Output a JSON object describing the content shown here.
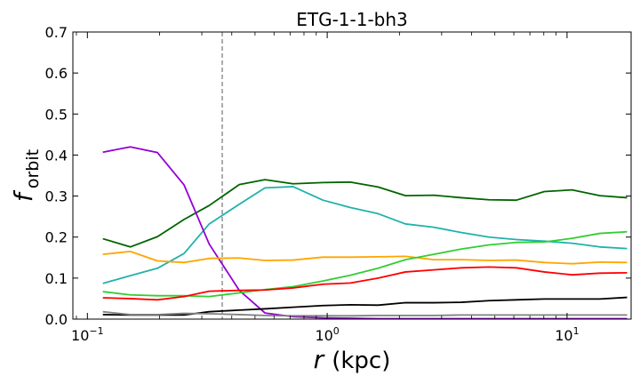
{
  "chart_data": {
    "type": "line",
    "title": "ETG-1-1-bh3",
    "xlabel": {
      "var": "r",
      "unit": "(kpc)"
    },
    "ylabel": {
      "var": "f",
      "sub": "orbit"
    },
    "xscale": "log",
    "xlim": [
      0.087,
      18.5
    ],
    "ylim": [
      0,
      0.7
    ],
    "xticks": [
      {
        "value": 0.1,
        "base": "10",
        "exp": "−1"
      },
      {
        "value": 1,
        "base": "10",
        "exp": "0"
      },
      {
        "value": 10,
        "base": "10",
        "exp": "1"
      }
    ],
    "yticks": [
      0.0,
      0.1,
      0.2,
      0.3,
      0.4,
      0.5,
      0.6,
      0.7
    ],
    "ytick_labels": [
      "0.0",
      "0.1",
      "0.2",
      "0.3",
      "0.4",
      "0.5",
      "0.6",
      "0.7"
    ],
    "vline": {
      "x": 0.365,
      "color": "#808080"
    },
    "x": [
      0.116,
      0.151,
      0.196,
      0.253,
      0.322,
      0.43,
      0.55,
      0.72,
      0.96,
      1.25,
      1.63,
      2.12,
      2.78,
      3.63,
      4.73,
      6.15,
      8.04,
      10.5,
      13.7,
      17.8
    ],
    "series": [
      {
        "color": "#006400",
        "values": [
          0.196,
          0.176,
          0.201,
          0.243,
          0.277,
          0.328,
          0.34,
          0.33,
          0.333,
          0.334,
          0.322,
          0.301,
          0.302,
          0.296,
          0.291,
          0.29,
          0.311,
          0.315,
          0.301,
          0.296
        ]
      },
      {
        "color": "#20b2aa",
        "values": [
          0.087,
          0.106,
          0.124,
          0.16,
          0.232,
          0.28,
          0.32,
          0.323,
          0.29,
          0.272,
          0.257,
          0.232,
          0.224,
          0.211,
          0.2,
          0.194,
          0.19,
          0.185,
          0.176,
          0.172
        ]
      },
      {
        "color": "#9400d3",
        "values": [
          0.407,
          0.42,
          0.406,
          0.327,
          0.183,
          0.07,
          0.015,
          0.006,
          0.003,
          0.002,
          0.001,
          0.001,
          0.001,
          0.001,
          0.001,
          0.001,
          0.001,
          0.001,
          0.001,
          0.001
        ]
      },
      {
        "color": "#ffa500",
        "values": [
          0.158,
          0.165,
          0.142,
          0.138,
          0.148,
          0.149,
          0.143,
          0.144,
          0.151,
          0.151,
          0.152,
          0.153,
          0.145,
          0.145,
          0.143,
          0.144,
          0.138,
          0.135,
          0.139,
          0.138
        ]
      },
      {
        "color": "#32cd32",
        "values": [
          0.067,
          0.059,
          0.057,
          0.057,
          0.055,
          0.064,
          0.072,
          0.079,
          0.093,
          0.107,
          0.124,
          0.145,
          0.158,
          0.171,
          0.181,
          0.187,
          0.188,
          0.197,
          0.209,
          0.213
        ]
      },
      {
        "color": "#ff0000",
        "values": [
          0.052,
          0.05,
          0.047,
          0.055,
          0.068,
          0.07,
          0.071,
          0.076,
          0.085,
          0.088,
          0.1,
          0.115,
          0.12,
          0.125,
          0.127,
          0.125,
          0.115,
          0.108,
          0.112,
          0.113
        ]
      },
      {
        "color": "#000000",
        "values": [
          0.011,
          0.01,
          0.01,
          0.01,
          0.018,
          0.022,
          0.025,
          0.029,
          0.033,
          0.035,
          0.034,
          0.04,
          0.04,
          0.041,
          0.045,
          0.047,
          0.049,
          0.049,
          0.049,
          0.053
        ]
      },
      {
        "color": "#808080",
        "values": [
          0.018,
          0.011,
          0.011,
          0.014,
          0.013,
          0.011,
          0.009,
          0.008,
          0.008,
          0.008,
          0.009,
          0.009,
          0.009,
          0.01,
          0.01,
          0.01,
          0.01,
          0.01,
          0.01,
          0.01
        ]
      }
    ]
  }
}
